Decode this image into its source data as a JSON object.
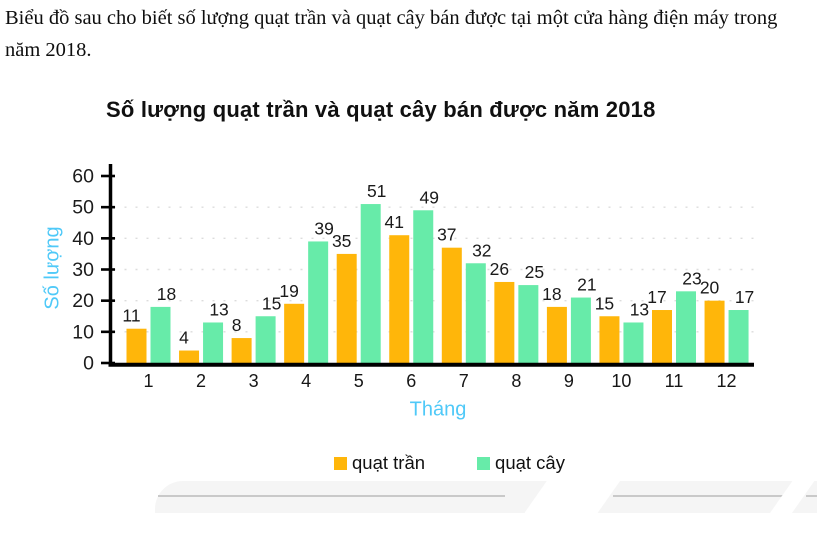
{
  "intro_text": "Biểu đồ sau cho biết số lượng quạt trần và quạt cây bán được tại một cửa hàng điện máy trong năm 2018.",
  "chart_data": {
    "type": "bar",
    "title": "Số lượng quạt trần và quạt cây bán được năm 2018",
    "xlabel": "Tháng",
    "ylabel": "Số lượng",
    "categories": [
      "1",
      "2",
      "3",
      "4",
      "5",
      "6",
      "7",
      "8",
      "9",
      "10",
      "11",
      "12"
    ],
    "series": [
      {
        "name": "quạt trần",
        "color": "#FFB60A",
        "values": [
          11,
          4,
          8,
          19,
          35,
          41,
          37,
          26,
          18,
          15,
          17,
          20
        ]
      },
      {
        "name": "quạt cây",
        "color": "#67EBA9",
        "values": [
          18,
          13,
          15,
          39,
          51,
          49,
          32,
          25,
          21,
          13,
          23,
          17
        ]
      }
    ],
    "ylim": [
      0,
      60
    ],
    "yticks": [
      0,
      10,
      20,
      30,
      40,
      50,
      60
    ],
    "grid": "faint dotted horizontal lines at each y tick",
    "legend_position": "bottom center",
    "axis_label_color": "#4FC9F8",
    "value_label_color": "#1a1a1a",
    "axis_line_color": "#000000"
  }
}
